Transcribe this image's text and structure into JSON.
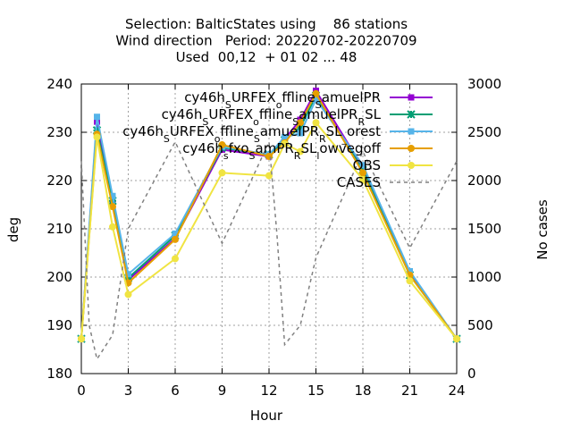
{
  "chart_data": {
    "type": "line",
    "title_lines": [
      "Selection: BalticStates using    86 stations",
      "Wind direction   Period: 20220702-20220709",
      "Used  00,12  + 01 02 ... 48"
    ],
    "xlabel": "Hour",
    "ylabel": "deg",
    "y2label": "No cases",
    "xlim": [
      0,
      24
    ],
    "ylim": [
      180,
      240
    ],
    "y2lim": [
      0,
      3000
    ],
    "x_ticks": [
      0,
      3,
      6,
      9,
      12,
      15,
      18,
      21,
      24
    ],
    "y_ticks": [
      180,
      190,
      200,
      210,
      220,
      230,
      240
    ],
    "y2_ticks": [
      0,
      500,
      1000,
      1500,
      2000,
      2500,
      3000
    ],
    "grid": true,
    "legend_position": "top-right",
    "x": [
      0,
      1,
      2,
      3,
      6,
      9,
      12,
      13,
      14,
      15,
      18,
      21,
      24
    ],
    "series": [
      {
        "name_parts": [
          [
            "cy46h",
            "base"
          ],
          [
            "S",
            "sub"
          ],
          [
            "URFEX",
            "base"
          ],
          [
            "o",
            "sub"
          ],
          [
            "ffline",
            "base"
          ],
          [
            "S",
            "sub"
          ],
          [
            "amuelPR",
            "base"
          ]
        ],
        "color": "#9400d3",
        "marker": "square",
        "axis": "y",
        "values": [
          187.2,
          232.2,
          215.3,
          199.4,
          208.0,
          226.4,
          225.0,
          228.6,
          232.6,
          238.6,
          222.6,
          200.8,
          187.2
        ]
      },
      {
        "name_parts": [
          [
            "cy46h",
            "base"
          ],
          [
            "S",
            "sub"
          ],
          [
            "URFEX",
            "base"
          ],
          [
            "o",
            "sub"
          ],
          [
            "ffline",
            "base"
          ],
          [
            "S",
            "sub"
          ],
          [
            "amuelPR",
            "base"
          ],
          [
            "R",
            "sub"
          ],
          [
            "SL",
            "base"
          ]
        ],
        "color": "#009e73",
        "marker": "star",
        "axis": "y",
        "values": [
          187.2,
          230.4,
          215.8,
          199.8,
          208.6,
          226.8,
          225.4,
          228.4,
          231.0,
          237.6,
          222.2,
          200.4,
          187.2
        ]
      },
      {
        "name_parts": [
          [
            "cy46h",
            "base"
          ],
          [
            "S",
            "sub"
          ],
          [
            "URFEX",
            "base"
          ],
          [
            "o",
            "sub"
          ],
          [
            "ffline",
            "base"
          ],
          [
            "S",
            "sub"
          ],
          [
            "amuelPR",
            "base"
          ],
          [
            "R",
            "sub"
          ],
          [
            "SL",
            "base"
          ],
          [
            "_",
            "sub"
          ],
          [
            "orest",
            "base"
          ]
        ],
        "color": "#56b4e9",
        "marker": "square",
        "axis": "y",
        "values": [
          187.2,
          233.2,
          216.8,
          200.6,
          209.0,
          227.0,
          225.4,
          229.0,
          229.8,
          236.8,
          223.2,
          201.2,
          187.2
        ]
      },
      {
        "name_parts": [
          [
            "cy46h",
            "base"
          ],
          [
            "s",
            "sub"
          ],
          [
            "fxo",
            "base"
          ],
          [
            "S",
            "sub"
          ],
          [
            "amPR",
            "base"
          ],
          [
            "R",
            "sub"
          ],
          [
            "SL",
            "base"
          ],
          [
            "l",
            "sub"
          ],
          [
            "owvegoff",
            "base"
          ]
        ],
        "color": "#e69f00",
        "marker": "circle",
        "axis": "y",
        "values": [
          187.2,
          229.6,
          214.6,
          198.8,
          207.8,
          227.4,
          225.0,
          227.8,
          232.0,
          238.0,
          221.6,
          200.4,
          187.2
        ]
      },
      {
        "name": "OBS",
        "color": "#f0e442",
        "marker": "circle",
        "axis": "y",
        "values": [
          187.2,
          229.0,
          210.4,
          196.4,
          203.8,
          221.6,
          221.0,
          227.6,
          226.0,
          232.0,
          220.2,
          199.2,
          187.2
        ]
      },
      {
        "name": "CASES",
        "color": "#808080",
        "marker": "none",
        "dash": true,
        "axis": "y2",
        "x": [
          0,
          0.5,
          1,
          2,
          3,
          6,
          9,
          12,
          12.5,
          13,
          14,
          15,
          18,
          21,
          24
        ],
        "values": [
          2200,
          500,
          150,
          400,
          1500,
          2400,
          1350,
          2400,
          1450,
          300,
          500,
          1200,
          2300,
          1300,
          2200
        ]
      }
    ]
  }
}
